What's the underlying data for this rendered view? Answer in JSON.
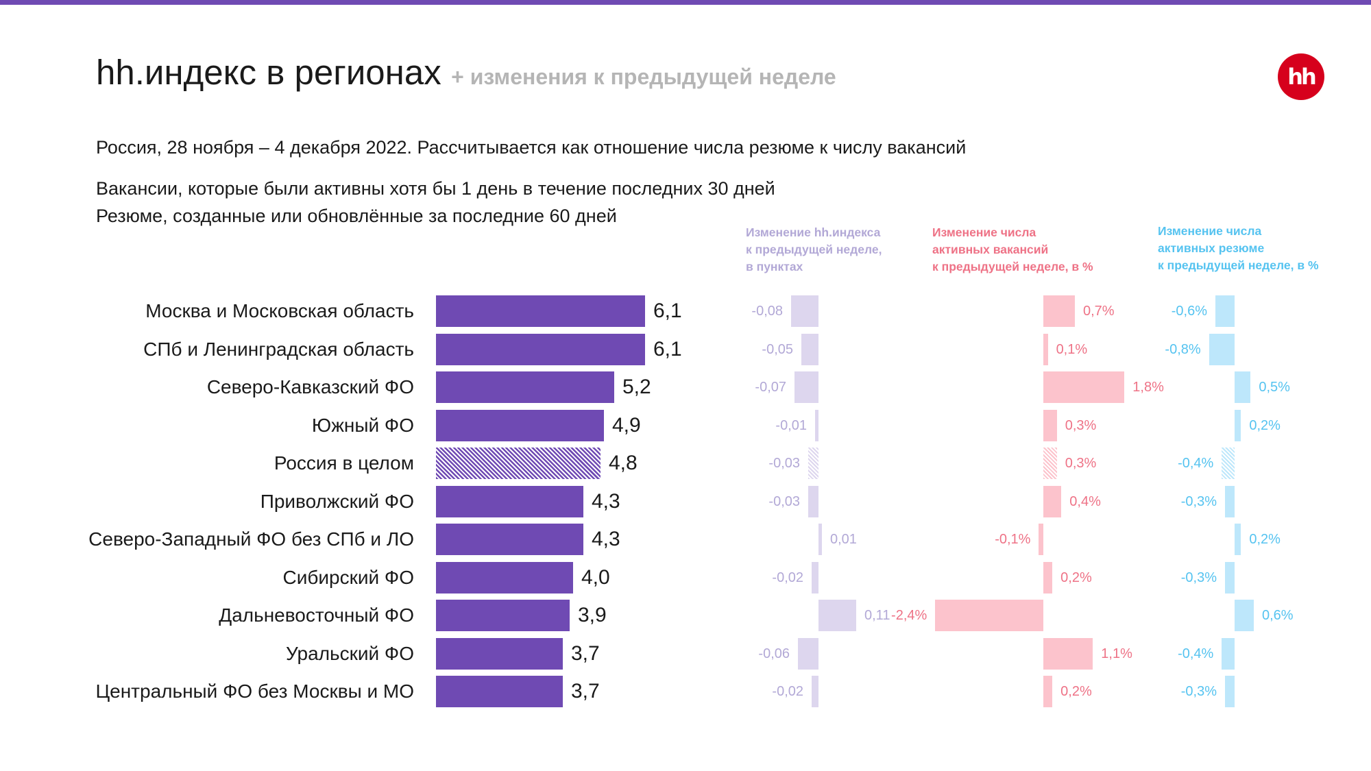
{
  "header": {
    "title": "hh.индекс в регионах",
    "subtitle": "+ изменения к предыдущей неделе",
    "logo_text": "hh",
    "description_1": "Россия, 28 ноября – 4 декабря 2022. Рассчитывается как отношение числа резюме к числу вакансий",
    "description_2": "Вакансии, которые были активны хотя бы 1 день в течение последних 30 дней",
    "description_3": "Резюме, созданные или обновлённые за последние 60 дней"
  },
  "colors": {
    "accent": "#6f4ab3",
    "logo_red": "#d6001c",
    "index_change_bar": "#ddd6ee",
    "index_change_text": "#b2a8d6",
    "vacancy_change_bar": "#fcc3cc",
    "vacancy_change_text": "#ee7286",
    "resume_change_bar": "#bde7fb",
    "resume_change_text": "#55c3f0"
  },
  "chart_data": {
    "type": "bar",
    "orientation": "horizontal",
    "categories": [
      "Москва и Московская область",
      "СПб и Ленинградская область",
      "Северо-Кавказский ФО",
      "Южный ФО",
      "Россия в целом",
      "Приволжский ФО",
      "Северо-Западный ФО без СПб и ЛО",
      "Сибирский ФО",
      "Дальневосточный ФО",
      "Уральский ФО",
      "Центральный ФО без Москвы и МО"
    ],
    "highlight_category": "Россия в целом",
    "series": [
      {
        "key": "index",
        "values": [
          6.1,
          6.1,
          5.2,
          4.9,
          4.8,
          4.3,
          4.3,
          4.0,
          3.9,
          3.7,
          3.7
        ],
        "labels": [
          "6,1",
          "6,1",
          "5,2",
          "4,9",
          "4,8",
          "4,3",
          "4,3",
          "4,0",
          "3,9",
          "3,7",
          "3,7"
        ]
      },
      {
        "key": "index_change",
        "name": "Изменение hh.индекса\nк предыдущей неделе,\nв пунктах",
        "values": [
          -0.08,
          -0.05,
          -0.07,
          -0.01,
          -0.03,
          -0.03,
          0.01,
          -0.02,
          0.11,
          -0.06,
          -0.02
        ],
        "labels": [
          "-0,08",
          "-0,05",
          "-0,07",
          "-0,01",
          "-0,03",
          "-0,03",
          "0,01",
          "-0,02",
          "0,11",
          "-0,06",
          "-0,02"
        ]
      },
      {
        "key": "vacancies_change",
        "name": "Изменение числа\nактивных вакансий\nк предыдущей неделе, в %",
        "values": [
          0.7,
          0.1,
          1.8,
          0.3,
          0.3,
          0.4,
          -0.1,
          0.2,
          -2.4,
          1.1,
          0.2
        ],
        "labels": [
          "0,7%",
          "0,1%",
          "1,8%",
          "0,3%",
          "0,3%",
          "0,4%",
          "-0,1%",
          "0,2%",
          "-2,4%",
          "1,1%",
          "0,2%"
        ]
      },
      {
        "key": "resumes_change",
        "name": "Изменение числа\nактивных резюме\nк предыдущей неделе, в %",
        "values": [
          -0.6,
          -0.8,
          0.5,
          0.2,
          -0.4,
          -0.3,
          0.2,
          -0.3,
          0.6,
          -0.4,
          -0.3
        ],
        "labels": [
          "-0,6%",
          "-0,8%",
          "0,5%",
          "0,2%",
          "-0,4%",
          "-0,3%",
          "0,2%",
          "-0,3%",
          "0,6%",
          "-0,4%",
          "-0,3%"
        ]
      }
    ]
  }
}
